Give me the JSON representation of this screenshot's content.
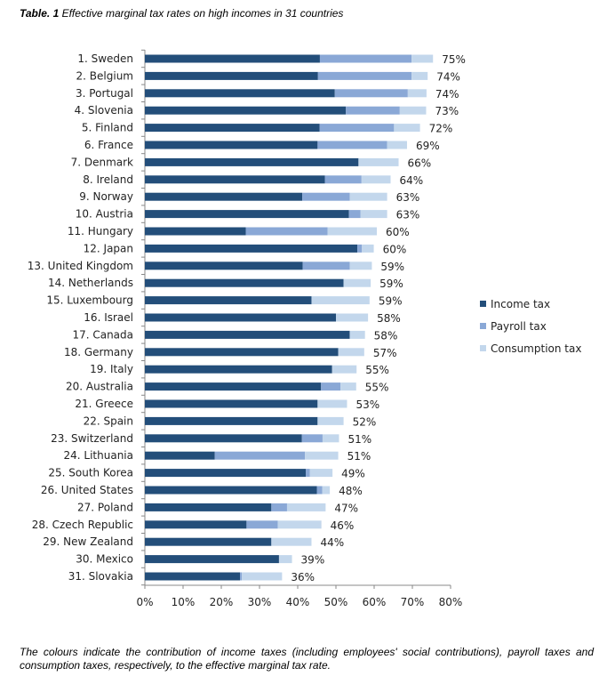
{
  "title": {
    "label": "Table. 1",
    "text": "Effective marginal tax rates on high incomes in 31 countries"
  },
  "footnote": "The colours indicate the contribution of income taxes (including employees' social contributions), payroll taxes and consumption taxes, respectively, to the effective marginal tax rate.",
  "chart_data": {
    "type": "bar",
    "orientation": "horizontal",
    "stacked": true,
    "title": "Effective marginal tax rates on high incomes in 31 countries",
    "xlabel": "",
    "ylabel": "",
    "xlim": [
      0,
      80
    ],
    "x_ticks": [
      "0%",
      "10%",
      "20%",
      "30%",
      "40%",
      "50%",
      "60%",
      "70%",
      "80%"
    ],
    "legend_position": "right",
    "categories": [
      "1. Sweden",
      "2. Belgium",
      "3. Portugal",
      "4. Slovenia",
      "5. Finland",
      "6. France",
      "7. Denmark",
      "8. Ireland",
      "9. Norway",
      "10. Austria",
      "11. Hungary",
      "12. Japan",
      "13. United Kingdom",
      "14. Netherlands",
      "15. Luxembourg",
      "16. Israel",
      "17. Canada",
      "18. Germany",
      "19. Italy",
      "20. Australia",
      "21. Greece",
      "22. Spain",
      "23. Switzerland",
      "24. Lithuania",
      "25. South Korea",
      "26. United States",
      "27. Poland",
      "28. Czech Republic",
      "29. New Zealand",
      "30. Mexico",
      "31. Slovakia"
    ],
    "series": [
      {
        "name": "Income tax",
        "color": "#234e7a",
        "values": [
          45.8,
          45.3,
          49.7,
          52.6,
          45.7,
          45.2,
          55.9,
          47.1,
          41.2,
          53.4,
          26.4,
          55.6,
          41.3,
          52.0,
          43.6,
          50.0,
          53.6,
          50.6,
          49.0,
          46.1,
          45.2,
          45.2,
          41.1,
          18.3,
          42.1,
          45.0,
          33.1,
          26.6,
          33.1,
          35.1,
          24.9
        ]
      },
      {
        "name": "Payroll tax",
        "color": "#8aa8d6",
        "values": [
          24.0,
          24.5,
          19.1,
          14.1,
          19.5,
          18.2,
          0,
          9.6,
          12.4,
          3.0,
          21.4,
          1.2,
          12.3,
          0,
          0,
          0,
          0,
          0,
          0,
          5.1,
          0,
          0,
          5.4,
          23.6,
          1.1,
          1.4,
          4.1,
          8.2,
          0,
          0,
          0.5
        ]
      },
      {
        "name": "Consumption tax",
        "color": "#c3d7ec",
        "values": [
          5.6,
          4.2,
          4.9,
          6.9,
          6.8,
          5.2,
          10.5,
          7.6,
          9.8,
          7.0,
          12.9,
          3.1,
          5.8,
          7.1,
          15.2,
          8.4,
          4.0,
          6.8,
          6.4,
          4.1,
          7.7,
          6.8,
          4.3,
          8.7,
          5.9,
          2.0,
          10.1,
          11.4,
          10.5,
          3.4,
          10.5
        ]
      }
    ],
    "data_labels": [
      "75%",
      "74%",
      "74%",
      "73%",
      "72%",
      "69%",
      "66%",
      "64%",
      "63%",
      "63%",
      "60%",
      "60%",
      "59%",
      "59%",
      "59%",
      "58%",
      "58%",
      "57%",
      "55%",
      "55%",
      "53%",
      "52%",
      "51%",
      "51%",
      "49%",
      "48%",
      "47%",
      "46%",
      "44%",
      "39%",
      "36%"
    ]
  }
}
